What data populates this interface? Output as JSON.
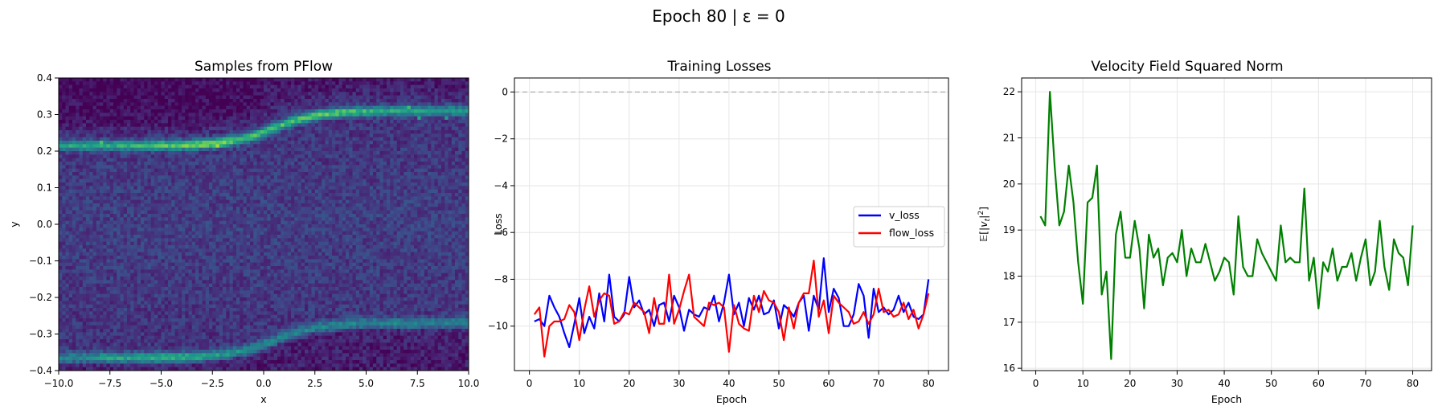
{
  "figure": {
    "suptitle": "Epoch 80 | ε = 0"
  },
  "chart_data": [
    {
      "type": "heatmap",
      "title": "Samples from PFlow",
      "xlabel": "x",
      "ylabel": "y",
      "xlim": [
        -10,
        10
      ],
      "ylim": [
        -0.4,
        0.4
      ],
      "xticks": [
        "−10.0",
        "−7.5",
        "−5.0",
        "−2.5",
        "0.0",
        "2.5",
        "5.0",
        "7.5",
        "10.0"
      ],
      "xtick_values": [
        -10,
        -7.5,
        -5,
        -2.5,
        0,
        2.5,
        5,
        7.5,
        10
      ],
      "yticks": [
        "−0.4",
        "−0.3",
        "−0.2",
        "−0.1",
        "0.0",
        "0.1",
        "0.2",
        "0.3",
        "0.4"
      ],
      "ytick_values": [
        -0.4,
        -0.3,
        -0.2,
        -0.1,
        0,
        0.1,
        0.2,
        0.3,
        0.4
      ],
      "colormap": "viridis",
      "bins": [
        120,
        84
      ],
      "upper_band": {
        "left_y": 0.215,
        "right_y": 0.31,
        "transition_center_x": 0.5
      },
      "lower_band": {
        "left_y": -0.365,
        "right_y": -0.27,
        "transition_center_x": 0.5
      },
      "grid": false
    },
    {
      "type": "line",
      "title": "Training Losses",
      "xlabel": "Epoch",
      "ylabel": "Loss",
      "xlim": [
        -3,
        84
      ],
      "ylim": [
        -11.9,
        0.6
      ],
      "xticks": [
        "0",
        "10",
        "20",
        "30",
        "40",
        "50",
        "60",
        "70",
        "80"
      ],
      "xtick_values": [
        0,
        10,
        20,
        30,
        40,
        50,
        60,
        70,
        80
      ],
      "yticks": [
        "−10",
        "−8",
        "−6",
        "−4",
        "−2",
        "0"
      ],
      "ytick_values": [
        -10,
        -8,
        -6,
        -4,
        -2,
        0
      ],
      "reference_line": {
        "y": 0,
        "color": "#aaaaaa",
        "style": "dashed"
      },
      "legend": {
        "position": "center-right"
      },
      "grid": true,
      "series": [
        {
          "name": "v_loss",
          "color": "#0000ff",
          "x": [
            1,
            2,
            3,
            4,
            5,
            6,
            7,
            8,
            9,
            10,
            11,
            12,
            13,
            14,
            15,
            16,
            17,
            18,
            19,
            20,
            21,
            22,
            23,
            24,
            25,
            26,
            27,
            28,
            29,
            30,
            31,
            32,
            33,
            34,
            35,
            36,
            37,
            38,
            39,
            40,
            41,
            42,
            43,
            44,
            45,
            46,
            47,
            48,
            49,
            50,
            51,
            52,
            53,
            54,
            55,
            56,
            57,
            58,
            59,
            60,
            61,
            62,
            63,
            64,
            65,
            66,
            67,
            68,
            69,
            70,
            71,
            72,
            73,
            74,
            75,
            76,
            77,
            78,
            79,
            80
          ],
          "values": [
            -9.8,
            -9.7,
            -10.0,
            -8.7,
            -9.2,
            -9.6,
            -10.3,
            -10.9,
            -9.9,
            -8.8,
            -10.3,
            -9.6,
            -10.1,
            -8.6,
            -9.8,
            -7.8,
            -9.6,
            -9.8,
            -9.5,
            -7.9,
            -9.2,
            -8.9,
            -9.5,
            -9.3,
            -10.0,
            -9.1,
            -9.0,
            -9.8,
            -8.7,
            -9.2,
            -10.2,
            -9.3,
            -9.5,
            -9.6,
            -9.2,
            -9.3,
            -8.7,
            -9.8,
            -9.0,
            -7.8,
            -9.5,
            -9.0,
            -10.0,
            -8.8,
            -9.3,
            -8.7,
            -9.5,
            -9.4,
            -8.9,
            -10.1,
            -9.1,
            -9.3,
            -9.6,
            -9.0,
            -8.7,
            -10.2,
            -8.7,
            -9.3,
            -7.1,
            -9.4,
            -8.4,
            -8.8,
            -10.0,
            -10.0,
            -9.5,
            -8.2,
            -8.7,
            -10.5,
            -8.4,
            -9.4,
            -9.2,
            -9.5,
            -9.3,
            -8.7,
            -9.4,
            -9.0,
            -9.6,
            -9.7,
            -9.5,
            -8.0
          ]
        },
        {
          "name": "flow_loss",
          "color": "#ff0000",
          "x": [
            1,
            2,
            3,
            4,
            5,
            6,
            7,
            8,
            9,
            10,
            11,
            12,
            13,
            14,
            15,
            16,
            17,
            18,
            19,
            20,
            21,
            22,
            23,
            24,
            25,
            26,
            27,
            28,
            29,
            30,
            31,
            32,
            33,
            34,
            35,
            36,
            37,
            38,
            39,
            40,
            41,
            42,
            43,
            44,
            45,
            46,
            47,
            48,
            49,
            50,
            51,
            52,
            53,
            54,
            55,
            56,
            57,
            58,
            59,
            60,
            61,
            62,
            63,
            64,
            65,
            66,
            67,
            68,
            69,
            70,
            71,
            72,
            73,
            74,
            75,
            76,
            77,
            78,
            79,
            80
          ],
          "values": [
            -9.5,
            -9.2,
            -11.3,
            -10.0,
            -9.8,
            -9.8,
            -9.7,
            -9.1,
            -9.4,
            -10.6,
            -9.3,
            -8.3,
            -9.6,
            -8.9,
            -8.6,
            -8.7,
            -9.9,
            -9.8,
            -9.4,
            -9.5,
            -9.0,
            -9.2,
            -9.4,
            -10.3,
            -8.8,
            -9.9,
            -9.9,
            -7.8,
            -9.9,
            -9.3,
            -8.5,
            -7.8,
            -9.6,
            -9.8,
            -10.0,
            -9.0,
            -9.1,
            -9.0,
            -9.2,
            -11.1,
            -9.1,
            -9.9,
            -10.1,
            -10.2,
            -8.7,
            -9.4,
            -8.5,
            -8.9,
            -9.0,
            -9.4,
            -10.6,
            -9.2,
            -10.1,
            -9.0,
            -8.6,
            -8.6,
            -7.2,
            -9.6,
            -8.9,
            -10.3,
            -8.7,
            -9.0,
            -9.2,
            -9.4,
            -9.9,
            -9.8,
            -9.4,
            -9.9,
            -9.5,
            -8.4,
            -9.4,
            -9.3,
            -9.6,
            -9.5,
            -9.0,
            -9.7,
            -9.3,
            -10.1,
            -9.5,
            -8.6
          ]
        }
      ]
    },
    {
      "type": "line",
      "title": "Velocity Field Squared Norm",
      "xlabel": "Epoch",
      "ylabel": "E[|v_t|^2]",
      "ylabel_parts": {
        "e": "𝔼",
        "open": "[|",
        "v": "v",
        "sub": "t",
        "close": "|",
        "sup": "2",
        "end": "]"
      },
      "xlim": [
        -3,
        84
      ],
      "ylim": [
        15.95,
        22.3
      ],
      "xticks": [
        "0",
        "10",
        "20",
        "30",
        "40",
        "50",
        "60",
        "70",
        "80"
      ],
      "xtick_values": [
        0,
        10,
        20,
        30,
        40,
        50,
        60,
        70,
        80
      ],
      "yticks": [
        "16",
        "17",
        "18",
        "19",
        "20",
        "21",
        "22"
      ],
      "ytick_values": [
        16,
        17,
        18,
        19,
        20,
        21,
        22
      ],
      "grid": true,
      "series": [
        {
          "color": "#008000",
          "x": [
            1,
            2,
            3,
            4,
            5,
            6,
            7,
            8,
            9,
            10,
            11,
            12,
            13,
            14,
            15,
            16,
            17,
            18,
            19,
            20,
            21,
            22,
            23,
            24,
            25,
            26,
            27,
            28,
            29,
            30,
            31,
            32,
            33,
            34,
            35,
            36,
            37,
            38,
            39,
            40,
            41,
            42,
            43,
            44,
            45,
            46,
            47,
            48,
            49,
            50,
            51,
            52,
            53,
            54,
            55,
            56,
            57,
            58,
            59,
            60,
            61,
            62,
            63,
            64,
            65,
            66,
            67,
            68,
            69,
            70,
            71,
            72,
            73,
            74,
            75,
            76,
            77,
            78,
            79,
            80
          ],
          "values": [
            19.3,
            19.1,
            22.0,
            20.4,
            19.1,
            19.4,
            20.4,
            19.6,
            18.3,
            17.4,
            19.6,
            19.7,
            20.4,
            17.6,
            18.1,
            16.2,
            18.9,
            19.4,
            18.4,
            18.4,
            19.2,
            18.6,
            17.3,
            18.9,
            18.4,
            18.6,
            17.8,
            18.4,
            18.5,
            18.3,
            19.0,
            18.0,
            18.6,
            18.3,
            18.3,
            18.7,
            18.3,
            17.9,
            18.1,
            18.4,
            18.3,
            17.6,
            19.3,
            18.2,
            18.0,
            18.0,
            18.8,
            18.5,
            18.3,
            18.1,
            17.9,
            19.1,
            18.3,
            18.4,
            18.3,
            18.3,
            19.9,
            17.9,
            18.4,
            17.3,
            18.3,
            18.1,
            18.6,
            17.9,
            18.2,
            18.2,
            18.5,
            17.9,
            18.4,
            18.8,
            17.8,
            18.1,
            19.2,
            18.2,
            17.7,
            18.8,
            18.5,
            18.4,
            17.8,
            19.1
          ]
        }
      ]
    }
  ]
}
